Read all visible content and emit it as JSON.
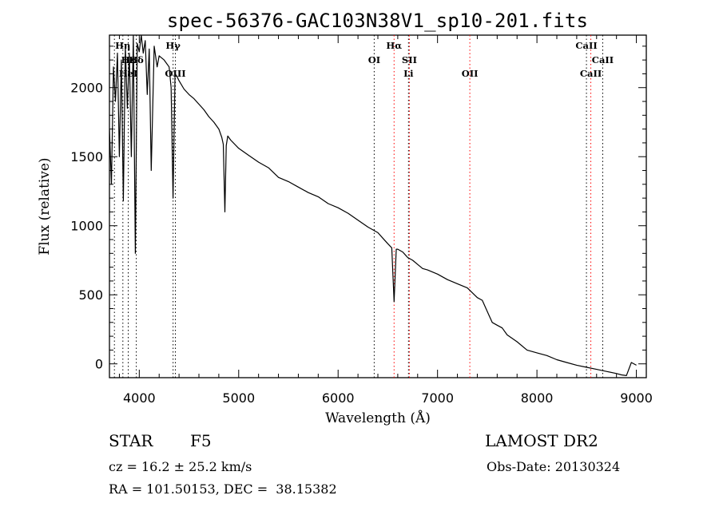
{
  "chart_data": {
    "type": "line",
    "title": "spec-56376-GAC103N38V1_sp10-201.fits",
    "xlabel": "Wavelength (Å)",
    "ylabel": "Flux (relative)",
    "xlim": [
      3700,
      9100
    ],
    "ylim": [
      -100,
      2380
    ],
    "xticks": [
      4000,
      5000,
      6000,
      7000,
      8000,
      9000
    ],
    "yticks": [
      0,
      500,
      1000,
      1500,
      2000
    ],
    "grid": false,
    "series": [
      {
        "x": [
          3700,
          3720,
          3740,
          3760,
          3780,
          3800,
          3820,
          3840,
          3860,
          3880,
          3900,
          3920,
          3940,
          3960,
          3980,
          4000,
          4020,
          4040,
          4060,
          4080,
          4100,
          4120,
          4150,
          4180,
          4200,
          4250,
          4300,
          4320,
          4340,
          4360,
          4380,
          4400,
          4450,
          4500,
          4550,
          4600,
          4650,
          4700,
          4750,
          4800,
          4830,
          4845,
          4861,
          4875,
          4890,
          4920,
          5000,
          5100,
          5200,
          5300,
          5400,
          5500,
          5600,
          5700,
          5800,
          5900,
          6000,
          6100,
          6200,
          6300,
          6400,
          6450,
          6500,
          6540,
          6563,
          6585,
          6600,
          6650,
          6700,
          6750,
          6800,
          6850,
          6900,
          7000,
          7100,
          7200,
          7300,
          7400,
          7450,
          7500,
          7550,
          7600,
          7650,
          7700,
          7800,
          7900,
          8000,
          8100,
          8200,
          8300,
          8400,
          8500,
          8600,
          8700,
          8800,
          8850,
          8900,
          8950,
          9000
        ],
        "y": [
          1700,
          1300,
          2150,
          1900,
          2250,
          1500,
          2200,
          1180,
          2300,
          1850,
          2250,
          1500,
          2380,
          800,
          2320,
          2260,
          2380,
          2250,
          2340,
          1950,
          2280,
          1400,
          2300,
          2150,
          2230,
          2200,
          2150,
          2000,
          1200,
          2100,
          2080,
          2050,
          1990,
          1950,
          1920,
          1880,
          1840,
          1790,
          1750,
          1700,
          1640,
          1590,
          1100,
          1580,
          1650,
          1620,
          1560,
          1510,
          1460,
          1420,
          1350,
          1320,
          1280,
          1240,
          1210,
          1160,
          1130,
          1090,
          1040,
          990,
          950,
          910,
          870,
          840,
          450,
          830,
          830,
          810,
          770,
          750,
          720,
          690,
          680,
          650,
          610,
          580,
          550,
          480,
          460,
          380,
          300,
          280,
          260,
          210,
          160,
          100,
          80,
          60,
          30,
          10,
          -10,
          -25,
          -40,
          -55,
          -70,
          -80,
          -85,
          10,
          -10
        ]
      }
    ],
    "annotations": [
      {
        "label": "Hη",
        "x": 3835,
        "row": 0,
        "color": "#000000"
      },
      {
        "label": "Hε",
        "x": 3889,
        "row": 1,
        "color": "#000000"
      },
      {
        "label": "HeI",
        "x": 3889,
        "row": 2,
        "color": "#000000"
      },
      {
        "label": "Hδ",
        "x": 3970,
        "row": 1,
        "color": "#000000"
      },
      {
        "label": "Hγ",
        "x": 4340,
        "row": 0,
        "color": "#000000"
      },
      {
        "label": "OIII",
        "x": 4363,
        "row": 2,
        "color": "#000000"
      },
      {
        "label": "OI",
        "x": 6363,
        "row": 1,
        "color": "#000000"
      },
      {
        "label": "Hα",
        "x": 6563,
        "row": 0,
        "color": "#000000"
      },
      {
        "label": "SII",
        "x": 6717,
        "row": 1,
        "color": "#000000"
      },
      {
        "label": "Li",
        "x": 6708,
        "row": 2,
        "color": "#000000"
      },
      {
        "label": "OII",
        "x": 7325,
        "row": 2,
        "color": "#000000"
      },
      {
        "label": "CaII",
        "x": 8498,
        "row": 0,
        "color": "#000000"
      },
      {
        "label": "CaII",
        "x": 8662,
        "row": 1,
        "color": "#000000"
      },
      {
        "label": "CaII",
        "x": 8542,
        "row": 2,
        "color": "#000000"
      }
    ],
    "reference_lines": [
      {
        "x": 3750,
        "color": "#000000"
      },
      {
        "x": 3835,
        "color": "#000000"
      },
      {
        "x": 3889,
        "color": "#000000"
      },
      {
        "x": 3970,
        "color": "#000000"
      },
      {
        "x": 4340,
        "color": "#000000"
      },
      {
        "x": 4363,
        "color": "#000000"
      },
      {
        "x": 6363,
        "color": "#000000"
      },
      {
        "x": 6563,
        "color": "#ff0000"
      },
      {
        "x": 6708,
        "color": "#000000"
      },
      {
        "x": 6717,
        "color": "#ff0000"
      },
      {
        "x": 7325,
        "color": "#ff0000"
      },
      {
        "x": 8498,
        "color": "#000000"
      },
      {
        "x": 8542,
        "color": "#ff0000"
      },
      {
        "x": 8662,
        "color": "#000000"
      }
    ]
  },
  "footer": {
    "class_label": "STAR",
    "subclass_label": "F5",
    "survey": "LAMOST DR2",
    "cz_text": "cz = 16.2 ± 25.2 km/s",
    "obs_date": "Obs-Date: 20130324",
    "radec_text": "RA = 101.50153, DEC =  38.15382"
  }
}
